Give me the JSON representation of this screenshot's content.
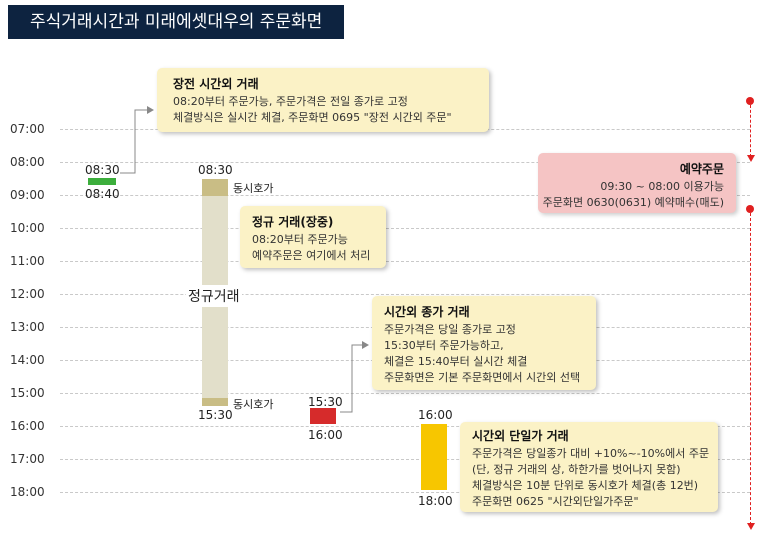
{
  "title": "주식거래시간과 미래에셋대우의 주문화면",
  "time_axis": [
    "07:00",
    "08:00",
    "09:00",
    "10:00",
    "11:00",
    "12:00",
    "13:00",
    "14:00",
    "15:00",
    "16:00",
    "17:00",
    "18:00"
  ],
  "premarket": {
    "start": "08:30",
    "end": "08:40",
    "color": "#3cae3c",
    "box": {
      "title": "장전 시간외 거래",
      "lines": [
        "08:20부터 주문가능, 주문가격은 전일 종가로 고정",
        "체결방식은 실시간 체결, 주문화면 0695 \"장전 시간외 주문\""
      ]
    }
  },
  "regular": {
    "start": "08:30",
    "end": "15:30",
    "label": "정규거래",
    "open_auction": "동시호가",
    "close_auction": "동시호가",
    "color": "#e2dfca",
    "auction_color": "#c9bd85",
    "box": {
      "title": "정규 거래(장중)",
      "lines": [
        "08:20부터 주문가능",
        "예약주문은 여기에서 처리"
      ]
    }
  },
  "after_close": {
    "start": "15:30",
    "end": "16:00",
    "color": "#d62b2b",
    "box": {
      "title": "시간외 종가 거래",
      "lines": [
        "주문가격은 당일 종가로 고정",
        "15:30부터 주문가능하고,",
        "체결은 15:40부터 실시간 체결",
        "주문화면은 기본 주문화면에서 시간외 선택"
      ]
    }
  },
  "single_price": {
    "start": "16:00",
    "end": "18:00",
    "color": "#f7c600",
    "box": {
      "title": "시간외 단일가 거래",
      "lines": [
        "주문가격은 당일종가 대비 +10%~-10%에서 주문",
        "(단, 정규 거래의 상, 하한가를 벗어나지 못함)",
        "체결방식은 10분 단위로 동시호가 체결(총 12번)",
        "주문화면 0625 \"시간외단일가주문\""
      ]
    }
  },
  "reservation": {
    "title": "예약주문",
    "lines": [
      "09:30 ~ 08:00 이용가능",
      "주문화면 0630(0631) 예약매수(매도)"
    ],
    "color": "#e02020"
  }
}
